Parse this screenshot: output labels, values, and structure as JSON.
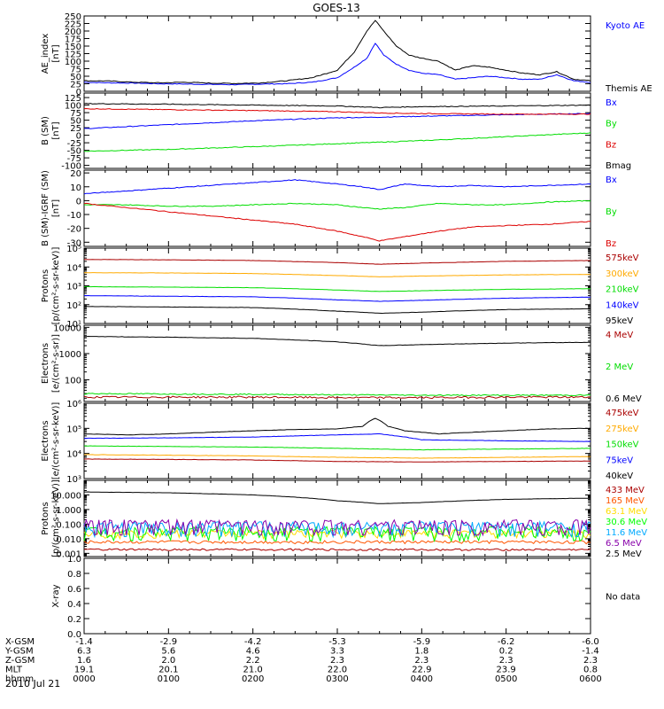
{
  "title": "GOES-13",
  "date_label": "2010 Jul 21",
  "ephemeris": {
    "rows": [
      {
        "label": "X-GSM",
        "values": [
          "-1.4",
          "-2.9",
          "-4.2",
          "-5.3",
          "-5.9",
          "-6.2",
          "-6.0"
        ]
      },
      {
        "label": "Y-GSM",
        "values": [
          "6.3",
          "5.6",
          "4.6",
          "3.3",
          "1.8",
          "0.2",
          "-1.4"
        ]
      },
      {
        "label": "Z-GSM",
        "values": [
          "1.6",
          "2.0",
          "2.2",
          "2.3",
          "2.3",
          "2.3",
          "2.3"
        ]
      },
      {
        "label": "MLT",
        "values": [
          "19.1",
          "20.1",
          "21.0",
          "22.0",
          "22.9",
          "23.9",
          "0.8"
        ]
      },
      {
        "label": "hhmm",
        "values": [
          "0000",
          "0100",
          "0200",
          "0300",
          "0400",
          "0500",
          "0600"
        ]
      }
    ]
  },
  "chart_data": [
    {
      "type": "line",
      "ylabel": "AE_index\n[nT]",
      "ylim": [
        0,
        250
      ],
      "yticks": [
        {
          "v": 0,
          "t": "0"
        },
        {
          "v": 25,
          "t": "25"
        },
        {
          "v": 50,
          "t": "50"
        },
        {
          "v": 75,
          "t": "75"
        },
        {
          "v": 100,
          "t": "100"
        },
        {
          "v": 125,
          "t": "125"
        },
        {
          "v": 150,
          "t": "150"
        },
        {
          "v": 175,
          "t": "175"
        },
        {
          "v": 200,
          "t": "200"
        },
        {
          "v": 225,
          "t": "225"
        },
        {
          "v": 250,
          "t": "250"
        }
      ],
      "series": [
        {
          "name": "Kyoto AE",
          "color": "#0000ff",
          "x": [
            0,
            0.3,
            0.6,
            0.9,
            1.2,
            1.5,
            1.8,
            2.1,
            2.4,
            2.7,
            3.0,
            3.2,
            3.35,
            3.45,
            3.55,
            3.7,
            3.85,
            4.0,
            4.2,
            4.4,
            4.6,
            4.8,
            5.0,
            5.2,
            5.4,
            5.6,
            5.8,
            6.0
          ],
          "y": [
            30,
            28,
            27,
            25,
            24,
            23,
            22,
            24,
            25,
            30,
            45,
            80,
            110,
            160,
            120,
            90,
            70,
            60,
            55,
            40,
            45,
            50,
            45,
            40,
            40,
            55,
            35,
            30
          ]
        },
        {
          "name": "Themis AE",
          "color": "#000000",
          "x": [
            0,
            0.3,
            0.6,
            0.9,
            1.2,
            1.5,
            1.8,
            2.1,
            2.4,
            2.7,
            3.0,
            3.2,
            3.35,
            3.45,
            3.55,
            3.7,
            3.85,
            4.0,
            4.2,
            4.4,
            4.6,
            4.8,
            5.0,
            5.2,
            5.4,
            5.6,
            5.8,
            6.0
          ],
          "y": [
            35,
            34,
            30,
            28,
            30,
            27,
            26,
            28,
            35,
            45,
            70,
            130,
            200,
            235,
            200,
            150,
            120,
            110,
            100,
            70,
            85,
            80,
            70,
            60,
            55,
            65,
            40,
            35
          ]
        }
      ]
    },
    {
      "type": "line",
      "ylabel": "B (SM)\n[nT]",
      "ylim": [
        -110,
        140
      ],
      "yticks": [
        {
          "v": -100,
          "t": "-100"
        },
        {
          "v": -75,
          "t": "-75"
        },
        {
          "v": -50,
          "t": "-50"
        },
        {
          "v": -25,
          "t": "-25"
        },
        {
          "v": 0,
          "t": "0"
        },
        {
          "v": 25,
          "t": "25"
        },
        {
          "v": 50,
          "t": "50"
        },
        {
          "v": 75,
          "t": "75"
        },
        {
          "v": 100,
          "t": "100"
        },
        {
          "v": 125,
          "t": "125"
        }
      ],
      "series": [
        {
          "name": "Bx",
          "color": "#0000ff",
          "x": [
            0,
            1,
            2,
            3,
            3.5,
            4,
            5,
            6
          ],
          "y": [
            22,
            35,
            48,
            58,
            60,
            63,
            68,
            72
          ]
        },
        {
          "name": "By",
          "color": "#00dd00",
          "x": [
            0,
            1,
            2,
            3,
            4,
            5,
            6
          ],
          "y": [
            -53,
            -47,
            -38,
            -28,
            -18,
            -5,
            8
          ]
        },
        {
          "name": "Bz",
          "color": "#dd0000",
          "x": [
            0,
            1,
            2,
            3,
            3.5,
            4,
            5,
            6
          ],
          "y": [
            88,
            85,
            82,
            78,
            74,
            72,
            70,
            70
          ]
        },
        {
          "name": "Bmag",
          "color": "#000000",
          "x": [
            0,
            1,
            2,
            3,
            3.5,
            4,
            5,
            6
          ],
          "y": [
            105,
            103,
            100,
            97,
            92,
            95,
            97,
            100
          ]
        }
      ]
    },
    {
      "type": "line",
      "ylabel": "B (SM)-IGRF (SM)\n[nT]",
      "ylim": [
        -33,
        22
      ],
      "yticks": [
        {
          "v": -30,
          "t": "-30"
        },
        {
          "v": -20,
          "t": "-20"
        },
        {
          "v": -10,
          "t": "-10"
        },
        {
          "v": 0,
          "t": "0"
        },
        {
          "v": 10,
          "t": "10"
        },
        {
          "v": 20,
          "t": "20"
        }
      ],
      "series": [
        {
          "name": "Bx",
          "color": "#0000ff",
          "x": [
            0,
            0.5,
            1,
            1.5,
            2,
            2.5,
            3,
            3.3,
            3.5,
            3.8,
            4.2,
            4.6,
            5,
            5.5,
            6
          ],
          "y": [
            5,
            7,
            9,
            11,
            13,
            15,
            12,
            10,
            8,
            12,
            10,
            11,
            10,
            11,
            12
          ]
        },
        {
          "name": "By",
          "color": "#00dd00",
          "x": [
            0,
            0.5,
            1,
            1.5,
            2,
            2.5,
            3,
            3.3,
            3.5,
            3.8,
            4.2,
            4.6,
            5,
            5.5,
            6
          ],
          "y": [
            -3,
            -3,
            -4,
            -4,
            -3,
            -2,
            -3,
            -5,
            -6,
            -5,
            -2,
            -3,
            -3,
            -1,
            0
          ]
        },
        {
          "name": "Bz",
          "color": "#dd0000",
          "x": [
            0,
            0.5,
            1,
            1.5,
            2,
            2.5,
            3,
            3.3,
            3.5,
            3.8,
            4.2,
            4.6,
            5,
            5.5,
            6
          ],
          "y": [
            -2,
            -5,
            -8,
            -11,
            -14,
            -17,
            -22,
            -26,
            -29,
            -26,
            -22,
            -19,
            -18,
            -17,
            -15
          ]
        }
      ]
    },
    {
      "type": "line",
      "ylog": true,
      "ylabel": "Protons\n[p/(cm²-s-sr-keV)]",
      "ylim": [
        10,
        100000
      ],
      "yticks": [
        {
          "v": 10,
          "t": "10¹"
        },
        {
          "v": 100,
          "t": "10²"
        },
        {
          "v": 1000,
          "t": "10³"
        },
        {
          "v": 10000,
          "t": "10⁴"
        },
        {
          "v": 100000,
          "t": "10⁵"
        }
      ],
      "series": [
        {
          "name": "575keV",
          "color": "#aa0000",
          "x": [
            0,
            1,
            2,
            3,
            3.5,
            4,
            5,
            6
          ],
          "y": [
            25000,
            24000,
            22000,
            17000,
            14000,
            16000,
            20000,
            22000
          ]
        },
        {
          "name": "300keV",
          "color": "#ffaa00",
          "x": [
            0,
            1,
            2,
            3,
            3.5,
            4,
            5,
            6
          ],
          "y": [
            5000,
            4800,
            4500,
            3500,
            3000,
            3300,
            3800,
            4000
          ]
        },
        {
          "name": "210keV",
          "color": "#00dd00",
          "x": [
            0,
            1,
            2,
            3,
            3.5,
            4,
            5,
            6
          ],
          "y": [
            900,
            850,
            800,
            600,
            500,
            550,
            650,
            700
          ]
        },
        {
          "name": "140keV",
          "color": "#0000ff",
          "x": [
            0,
            1,
            2,
            3,
            3.5,
            4,
            5,
            6
          ],
          "y": [
            300,
            280,
            260,
            180,
            150,
            170,
            220,
            250
          ]
        },
        {
          "name": "95keV",
          "color": "#000000",
          "x": [
            0,
            1,
            2,
            3,
            3.5,
            4,
            5,
            6
          ],
          "y": [
            80,
            75,
            70,
            45,
            35,
            40,
            55,
            60
          ]
        }
      ]
    },
    {
      "type": "line",
      "ylog": true,
      "ylabel": "Electrons\n[e/(cm²-s-sr)]",
      "ylim": [
        15,
        12000
      ],
      "yticks": [
        {
          "v": 100,
          "t": "100"
        },
        {
          "v": 1000,
          "t": "1000"
        },
        {
          "v": 10000,
          "t": "10000"
        }
      ],
      "series": [
        {
          "name": "4 MeV",
          "color": "#aa0000",
          "x": [
            0,
            1,
            2,
            3,
            4,
            5,
            6
          ],
          "y": [
            22,
            22,
            22,
            21,
            21,
            22,
            22
          ],
          "noise": 0.08
        },
        {
          "name": "2 MeV",
          "color": "#00dd00",
          "x": [
            0,
            1,
            2,
            3,
            4,
            5,
            6
          ],
          "y": [
            30,
            29,
            28,
            27,
            26,
            26,
            26
          ],
          "noise": 0.05
        },
        {
          "name": "0.6 MeV",
          "color": "#000000",
          "x": [
            0,
            1,
            2,
            3,
            3.5,
            4,
            5,
            6
          ],
          "y": [
            4500,
            4200,
            3800,
            2800,
            2000,
            2200,
            2500,
            2700
          ]
        }
      ]
    },
    {
      "type": "line",
      "ylog": true,
      "ylabel": "Electrons\n[e/(cm²-s-sr-keV)]",
      "ylim": [
        1000,
        1000000
      ],
      "yticks": [
        {
          "v": 1000,
          "t": "10³"
        },
        {
          "v": 10000,
          "t": "10⁴"
        },
        {
          "v": 100000,
          "t": "10⁵"
        },
        {
          "v": 1000000,
          "t": "10⁶"
        }
      ],
      "series": [
        {
          "name": "475keV",
          "color": "#aa0000",
          "x": [
            0,
            1,
            2,
            3,
            4,
            5,
            6
          ],
          "y": [
            6000,
            5800,
            5500,
            4800,
            4600,
            4800,
            5000
          ]
        },
        {
          "name": "275keV",
          "color": "#ffaa00",
          "x": [
            0,
            1,
            2,
            3,
            4,
            5,
            6
          ],
          "y": [
            9000,
            8500,
            8000,
            7000,
            6500,
            7000,
            7500
          ]
        },
        {
          "name": "150keV",
          "color": "#00dd00",
          "x": [
            0,
            1,
            2,
            3,
            4,
            5,
            6
          ],
          "y": [
            20000,
            19000,
            18000,
            16000,
            14000,
            15000,
            16000
          ]
        },
        {
          "name": "75keV",
          "color": "#0000ff",
          "x": [
            0,
            1,
            2,
            3,
            3.5,
            4,
            5,
            6
          ],
          "y": [
            40000,
            42000,
            45000,
            55000,
            60000,
            35000,
            32000,
            30000
          ]
        },
        {
          "name": "40keV",
          "color": "#000000",
          "x": [
            0,
            0.5,
            1,
            1.5,
            2,
            2.5,
            3,
            3.3,
            3.45,
            3.6,
            3.8,
            4.2,
            4.6,
            5,
            5.5,
            6
          ],
          "y": [
            60000,
            55000,
            60000,
            70000,
            80000,
            90000,
            95000,
            120000,
            250000,
            120000,
            80000,
            60000,
            70000,
            80000,
            95000,
            100000
          ]
        }
      ]
    },
    {
      "type": "line",
      "ylog": true,
      "ylabel": "Protons\n[p/(cm²-s-sr-keV)]",
      "ylim": [
        0.0006,
        100
      ],
      "yticks": [
        {
          "v": 0.001,
          "t": "0.001"
        },
        {
          "v": 0.01,
          "t": "0.010"
        },
        {
          "v": 0.1,
          "t": "0.100"
        },
        {
          "v": 1,
          "t": "1.000"
        },
        {
          "v": 10,
          "t": "10.000"
        }
      ],
      "series": [
        {
          "name": "433 MeV",
          "color": "#aa0000",
          "x": [
            0,
            6
          ],
          "y": [
            0.0018,
            0.0018
          ],
          "noise": 0.15
        },
        {
          "name": "165 MeV",
          "color": "#ff5500",
          "x": [
            0,
            6
          ],
          "y": [
            0.006,
            0.006
          ],
          "noise": 0.25
        },
        {
          "name": "63.1 MeV",
          "color": "#ffdd00",
          "x": [
            0,
            6
          ],
          "y": [
            0.025,
            0.025
          ],
          "noise": 0.6
        },
        {
          "name": "30.6 MeV",
          "color": "#00ff00",
          "x": [
            0,
            6
          ],
          "y": [
            0.035,
            0.035
          ],
          "noise": 0.9
        },
        {
          "name": "11.6 MeV",
          "color": "#00aaff",
          "x": [
            0,
            6
          ],
          "y": [
            0.07,
            0.07
          ],
          "noise": 1.1
        },
        {
          "name": "6.5 MeV",
          "color": "#8800aa",
          "x": [
            0,
            6
          ],
          "y": [
            0.09,
            0.09
          ],
          "noise": 1.2
        },
        {
          "name": "2.5 MeV",
          "color": "#000000",
          "x": [
            0,
            1,
            2,
            3,
            3.5,
            4,
            5,
            6
          ],
          "y": [
            16,
            14,
            10,
            4,
            2.5,
            3,
            5,
            6
          ]
        }
      ]
    },
    {
      "type": "line",
      "ylabel": "X-ray",
      "ylim": [
        0,
        1
      ],
      "yticks": [
        {
          "v": 0,
          "t": "0.0"
        },
        {
          "v": 0.2,
          "t": "0.2"
        },
        {
          "v": 0.4,
          "t": "0.4"
        },
        {
          "v": 0.6,
          "t": "0.6"
        },
        {
          "v": 0.8,
          "t": "0.8"
        },
        {
          "v": 1.0,
          "t": "1.0"
        }
      ],
      "series": [],
      "note": "No data"
    }
  ]
}
